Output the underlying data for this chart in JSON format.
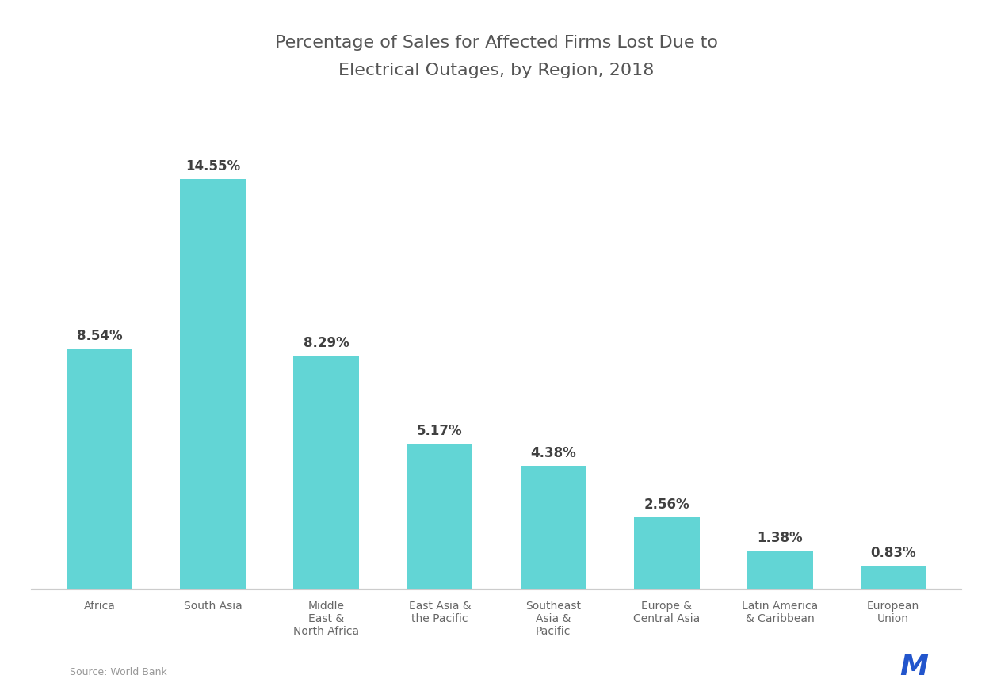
{
  "title_line1": "Percentage of Sales for Affected Firms Lost Due to",
  "title_line2": "Electrical Outages, by Region, 2018",
  "categories": [
    "Africa",
    "South Asia",
    "Middle\nEast &\nNorth Africa",
    "East Asia &\nthe Pacific",
    "Southeast\nAsia &\nPacific",
    "Europe &\nCentral Asia",
    "Latin America\n& Caribbean",
    "European\nUnion"
  ],
  "values": [
    8.54,
    14.55,
    8.29,
    5.17,
    4.38,
    2.56,
    1.38,
    0.83
  ],
  "labels": [
    "8.54%",
    "14.55%",
    "8.29%",
    "5.17%",
    "4.38%",
    "2.56%",
    "1.38%",
    "0.83%"
  ],
  "bar_color": "#62D5D5",
  "label_color": "#404040",
  "background_color": "#ffffff",
  "plot_bg_color": "#ffffff",
  "title_color": "#555555",
  "axis_color": "#cccccc",
  "tick_label_color": "#666666",
  "source_color": "#999999",
  "ylim": [
    0,
    17.5
  ],
  "source_text": "Source: World Bank"
}
